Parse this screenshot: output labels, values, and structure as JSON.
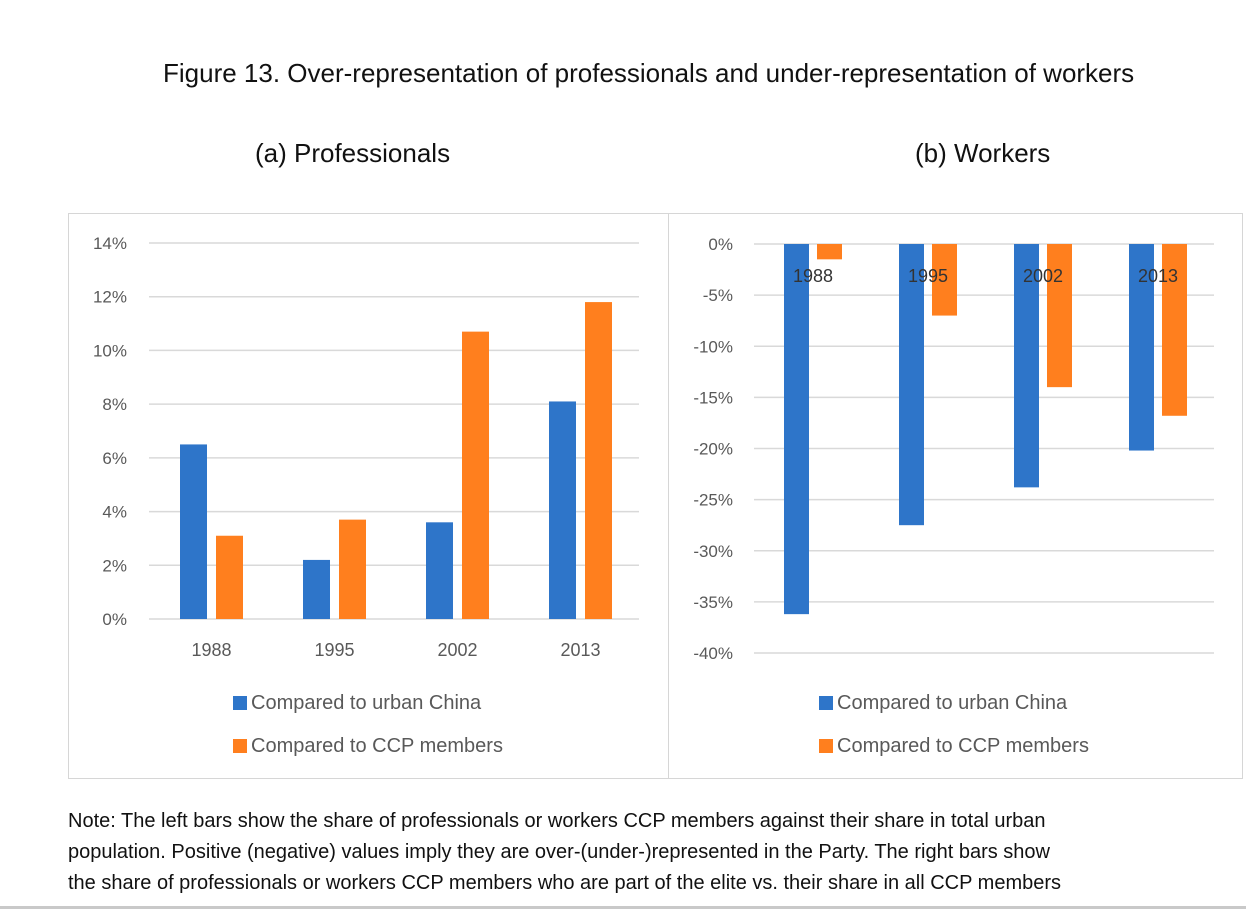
{
  "figure_title": "Figure 13. Over-representation of professionals and under-representation of workers",
  "note_lines": [
    "Note: The left bars show the share of professionals or workers CCP members against their share in total urban",
    "population. Positive (negative) values imply they are over-(under-)represented in the Party. The right bars show",
    "the share of professionals or workers CCP members who are part of the elite vs. their share in all CCP members"
  ],
  "colors": {
    "urban": "#2e75c9",
    "ccp": "#ff7f1e",
    "grid": "#d9d9d9",
    "tick": "#595959"
  },
  "chart_data": [
    {
      "type": "bar",
      "title": "(a)  Professionals",
      "categories": [
        "1988",
        "1995",
        "2002",
        "2013"
      ],
      "series": [
        {
          "name": "Compared to urban China",
          "values": [
            6.5,
            2.2,
            3.6,
            8.1
          ]
        },
        {
          "name": "Compared to CCP members",
          "values": [
            3.1,
            3.7,
            10.7,
            11.8
          ]
        }
      ],
      "ylim": [
        0,
        14
      ],
      "yticks": [
        "14%",
        "12%",
        "10%",
        "8%",
        "6%",
        "4%",
        "2%",
        "0%"
      ],
      "legend_position": "bottom",
      "grid": true
    },
    {
      "type": "bar",
      "title": "(b) Workers",
      "categories": [
        "1988",
        "1995",
        "2002",
        "2013"
      ],
      "series": [
        {
          "name": "Compared to urban China",
          "values": [
            -36.2,
            -27.5,
            -23.8,
            -20.2
          ]
        },
        {
          "name": "Compared to CCP members",
          "values": [
            -1.5,
            -7.0,
            -14.0,
            -16.8
          ]
        }
      ],
      "ylim": [
        -40,
        0
      ],
      "yticks": [
        "0%",
        "-5%",
        "-10%",
        "-15%",
        "-20%",
        "-25%",
        "-30%",
        "-35%",
        "-40%"
      ],
      "legend_position": "bottom",
      "grid": true
    }
  ]
}
